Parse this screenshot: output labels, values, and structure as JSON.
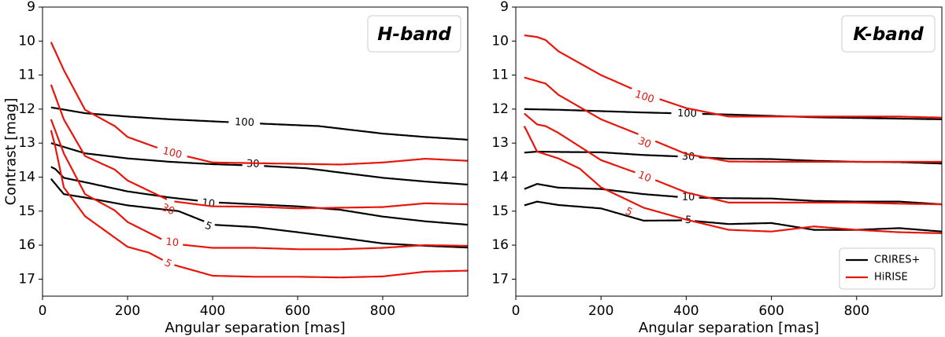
{
  "chart_data": [
    {
      "type": "line",
      "title": "H-band",
      "xlabel": "Angular separation [mas]",
      "ylabel": "Contrast [mag]",
      "xlim": [
        0,
        1000
      ],
      "ylim": [
        17.5,
        9
      ],
      "xticks": [
        "0",
        "200",
        "400",
        "600",
        "800"
      ],
      "yticks": [
        "9",
        "10",
        "11",
        "12",
        "13",
        "14",
        "15",
        "16",
        "17"
      ],
      "legend": null,
      "series": [
        {
          "name": "CRIRES+",
          "label": "100",
          "label_at": [
            475,
            12.4
          ],
          "x": [
            20,
            100,
            200,
            300,
            400,
            500,
            650,
            800,
            900,
            1000
          ],
          "y": [
            11.95,
            12.12,
            12.22,
            12.3,
            12.36,
            12.42,
            12.5,
            12.72,
            12.82,
            12.9
          ]
        },
        {
          "name": "CRIRES+",
          "label": "30",
          "label_at": [
            495,
            13.62
          ],
          "x": [
            20,
            100,
            200,
            300,
            400,
            500,
            620,
            800,
            900,
            1000
          ],
          "y": [
            13.0,
            13.3,
            13.45,
            13.55,
            13.62,
            13.66,
            13.74,
            14.02,
            14.13,
            14.22
          ]
        },
        {
          "name": "CRIRES+",
          "label": "10",
          "label_at": [
            390,
            14.78
          ],
          "x": [
            20,
            30,
            50,
            100,
            200,
            300,
            400,
            500,
            600,
            700,
            800,
            900,
            1000
          ],
          "y": [
            13.7,
            13.76,
            14.02,
            14.15,
            14.42,
            14.6,
            14.74,
            14.8,
            14.86,
            14.96,
            15.16,
            15.3,
            15.4
          ],
          "gap": [
            370,
            415
          ]
        },
        {
          "name": "CRIRES+",
          "label": "5",
          "label_at": [
            390,
            15.45
          ],
          "x": [
            20,
            50,
            100,
            200,
            320,
            400,
            500,
            600,
            700,
            800,
            900,
            1000
          ],
          "y": [
            14.05,
            14.5,
            14.6,
            14.83,
            15.0,
            15.4,
            15.47,
            15.62,
            15.78,
            15.95,
            16.02,
            16.07
          ],
          "gap": [
            370,
            410
          ]
        },
        {
          "name": "HiRISE",
          "label": "100",
          "label_at": [
            305,
            13.3
          ],
          "x": [
            20,
            50,
            100,
            170,
            200,
            300,
            400,
            500,
            700,
            800,
            900,
            1000
          ],
          "y": [
            10.03,
            10.85,
            12.02,
            12.5,
            12.82,
            13.27,
            13.57,
            13.59,
            13.63,
            13.57,
            13.46,
            13.52
          ]
        },
        {
          "name": "HiRISE",
          "label": "30",
          "label_at": [
            295,
            14.96
          ],
          "x": [
            20,
            50,
            100,
            170,
            200,
            300,
            400,
            500,
            600,
            700,
            800,
            900,
            1000
          ],
          "y": [
            11.28,
            12.3,
            13.38,
            13.78,
            14.1,
            14.7,
            14.86,
            14.87,
            14.92,
            14.9,
            14.88,
            14.77,
            14.8
          ]
        },
        {
          "name": "HiRISE",
          "label": "10",
          "label_at": [
            305,
            15.93
          ],
          "x": [
            20,
            50,
            100,
            170,
            200,
            300,
            400,
            500,
            600,
            700,
            800,
            900,
            1000
          ],
          "y": [
            12.3,
            13.3,
            14.5,
            14.98,
            15.32,
            15.95,
            16.08,
            16.08,
            16.12,
            16.12,
            16.08,
            16.0,
            16.02
          ]
        },
        {
          "name": "HiRISE",
          "label": "5",
          "label_at": [
            295,
            16.55
          ],
          "x": [
            20,
            30,
            50,
            100,
            200,
            250,
            300,
            400,
            500,
            600,
            700,
            800,
            900,
            1000
          ],
          "y": [
            12.62,
            13.1,
            14.3,
            15.15,
            16.05,
            16.22,
            16.55,
            16.9,
            16.93,
            16.93,
            16.95,
            16.92,
            16.78,
            16.75
          ]
        }
      ]
    },
    {
      "type": "line",
      "title": "K-band",
      "xlabel": "Angular separation [mas]",
      "ylabel": "",
      "xlim": [
        0,
        1000
      ],
      "ylim": [
        17.5,
        9
      ],
      "xticks": [
        "0",
        "200",
        "400",
        "600",
        "800"
      ],
      "yticks": [
        "9",
        "10",
        "11",
        "12",
        "13",
        "14",
        "15",
        "16",
        "17"
      ],
      "legend": {
        "position": "lower-right",
        "entries": [
          {
            "label": "CRIRES+",
            "color": "#000000"
          },
          {
            "label": "HiRISE",
            "color": "#e8150b"
          }
        ]
      },
      "series": [
        {
          "name": "CRIRES+",
          "label": "100",
          "label_at": [
            402,
            12.14
          ],
          "x": [
            20,
            100,
            200,
            300,
            400,
            500,
            600,
            700,
            800,
            900,
            1000
          ],
          "y": [
            12.0,
            12.02,
            12.06,
            12.1,
            12.13,
            12.16,
            12.2,
            12.24,
            12.26,
            12.28,
            12.3
          ]
        },
        {
          "name": "CRIRES+",
          "label": "30",
          "label_at": [
            405,
            13.41
          ],
          "x": [
            20,
            50,
            100,
            200,
            300,
            400,
            500,
            600,
            700,
            800,
            900,
            1000
          ],
          "y": [
            13.28,
            13.25,
            13.26,
            13.27,
            13.35,
            13.4,
            13.46,
            13.47,
            13.52,
            13.55,
            13.56,
            13.6
          ]
        },
        {
          "name": "CRIRES+",
          "label": "10",
          "label_at": [
            405,
            14.6
          ],
          "x": [
            20,
            50,
            100,
            200,
            300,
            400,
            500,
            600,
            700,
            800,
            900,
            1000
          ],
          "y": [
            14.35,
            14.2,
            14.31,
            14.35,
            14.5,
            14.6,
            14.62,
            14.63,
            14.7,
            14.72,
            14.72,
            14.8
          ]
        },
        {
          "name": "CRIRES+",
          "label": "5",
          "label_at": [
            405,
            15.27
          ],
          "x": [
            20,
            50,
            100,
            200,
            300,
            400,
            500,
            600,
            700,
            800,
            900,
            1000
          ],
          "y": [
            14.83,
            14.72,
            14.82,
            14.92,
            15.28,
            15.27,
            15.38,
            15.35,
            15.55,
            15.55,
            15.5,
            15.6
          ]
        },
        {
          "name": "HiRISE",
          "label": "100",
          "label_at": [
            302,
            11.65
          ],
          "x": [
            20,
            50,
            70,
            100,
            200,
            300,
            400,
            500,
            600,
            700,
            800,
            900,
            1000
          ],
          "y": [
            9.83,
            9.88,
            9.97,
            10.3,
            11.0,
            11.55,
            11.97,
            12.22,
            12.22,
            12.22,
            12.22,
            12.22,
            12.25
          ]
        },
        {
          "name": "HiRISE",
          "label": "30",
          "label_at": [
            302,
            13.0
          ],
          "x": [
            20,
            70,
            100,
            200,
            300,
            400,
            500,
            600,
            700,
            800,
            900,
            1000
          ],
          "y": [
            11.07,
            11.25,
            11.58,
            12.3,
            12.8,
            13.32,
            13.54,
            13.55,
            13.55,
            13.55,
            13.55,
            13.55
          ]
        },
        {
          "name": "HiRISE",
          "label": "10",
          "label_at": [
            302,
            14.0
          ],
          "x": [
            20,
            50,
            70,
            100,
            200,
            300,
            400,
            500,
            600,
            700,
            800,
            900,
            1000
          ],
          "y": [
            12.13,
            12.45,
            12.5,
            12.7,
            13.5,
            13.95,
            14.45,
            14.75,
            14.75,
            14.75,
            14.75,
            14.78,
            14.8
          ]
        },
        {
          "name": "HiRISE",
          "label": "5",
          "label_at": [
            265,
            15.03
          ],
          "x": [
            20,
            50,
            100,
            150,
            200,
            300,
            400,
            500,
            600,
            700,
            800,
            900,
            1000
          ],
          "y": [
            12.5,
            13.25,
            13.45,
            13.75,
            14.3,
            14.9,
            15.25,
            15.55,
            15.6,
            15.45,
            15.55,
            15.62,
            15.65
          ]
        }
      ]
    }
  ],
  "colors": {
    "crires": "#000000",
    "hirise": "#e8150b"
  }
}
